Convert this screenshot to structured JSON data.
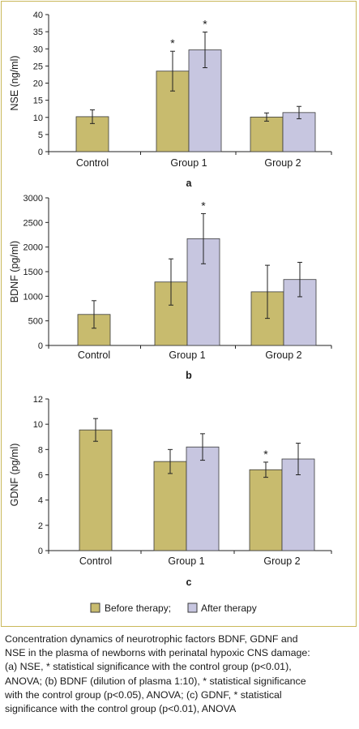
{
  "colors": {
    "before": "#c8bb6e",
    "after": "#c7c6e0",
    "bar_stroke": "#3a3a3a",
    "frame": "#c9b85a"
  },
  "legend": {
    "before_label": "Before therapy;",
    "after_label": "After therapy"
  },
  "caption": {
    "line1": "Concentration dynamics of neurotrophic factors BDNF, GDNF and",
    "line2": "NSE in the plasma of newborns with perinatal hypoxic CNS damage:",
    "line3": "(a) NSE, * statistical significance with the control group (p<0.01),",
    "line4": "ANOVA; (b) BDNF (dilution of plasma 1:10), * statistical significance",
    "line5": "with the control group (p<0.05), ANOVA; (c) GDNF, * statistical",
    "line6": "significance with the control group (p<0.01), ANOVA"
  },
  "chart_data": [
    {
      "type": "bar",
      "panel_label": "a",
      "ylabel": "NSE (ng/ml)",
      "ylim": [
        0,
        40
      ],
      "yticks": [
        0,
        5,
        10,
        15,
        20,
        25,
        30,
        35,
        40
      ],
      "categories": [
        "Control",
        "Group 1",
        "Group 2"
      ],
      "series": [
        {
          "name": "Before therapy;",
          "values": [
            10.2,
            23.5,
            10.1
          ],
          "errors": [
            2.0,
            5.8,
            1.2
          ]
        },
        {
          "name": "After therapy",
          "values": [
            null,
            29.7,
            11.4
          ],
          "errors": [
            null,
            5.2,
            1.8
          ]
        }
      ],
      "significance": [
        {
          "category": "Group 1",
          "series": 0,
          "mark": "*"
        },
        {
          "category": "Group 1",
          "series": 1,
          "mark": "*"
        }
      ]
    },
    {
      "type": "bar",
      "panel_label": "b",
      "ylabel": "BDNF (pg/ml)",
      "ylim": [
        0,
        3000
      ],
      "yticks": [
        0,
        500,
        1000,
        1500,
        2000,
        2500,
        3000
      ],
      "categories": [
        "Control",
        "Group 1",
        "Group 2"
      ],
      "series": [
        {
          "name": "Before therapy;",
          "values": [
            630,
            1290,
            1090
          ],
          "errors": [
            280,
            470,
            540
          ]
        },
        {
          "name": "After therapy",
          "values": [
            null,
            2170,
            1340
          ],
          "errors": [
            null,
            510,
            350
          ]
        }
      ],
      "significance": [
        {
          "category": "Group 1",
          "series": 1,
          "mark": "*"
        }
      ]
    },
    {
      "type": "bar",
      "panel_label": "c",
      "ylabel": "GDNF (pg/ml)",
      "ylim": [
        0,
        12
      ],
      "yticks": [
        0,
        2,
        4,
        6,
        8,
        10,
        12
      ],
      "categories": [
        "Control",
        "Group 1",
        "Group 2"
      ],
      "series": [
        {
          "name": "Before therapy;",
          "values": [
            9.55,
            7.05,
            6.4
          ],
          "errors": [
            0.9,
            0.95,
            0.6
          ]
        },
        {
          "name": "After therapy",
          "values": [
            null,
            8.2,
            7.25
          ],
          "errors": [
            null,
            1.05,
            1.25
          ]
        }
      ],
      "significance": [
        {
          "category": "Group 2",
          "series": 0,
          "mark": "*"
        }
      ]
    }
  ]
}
